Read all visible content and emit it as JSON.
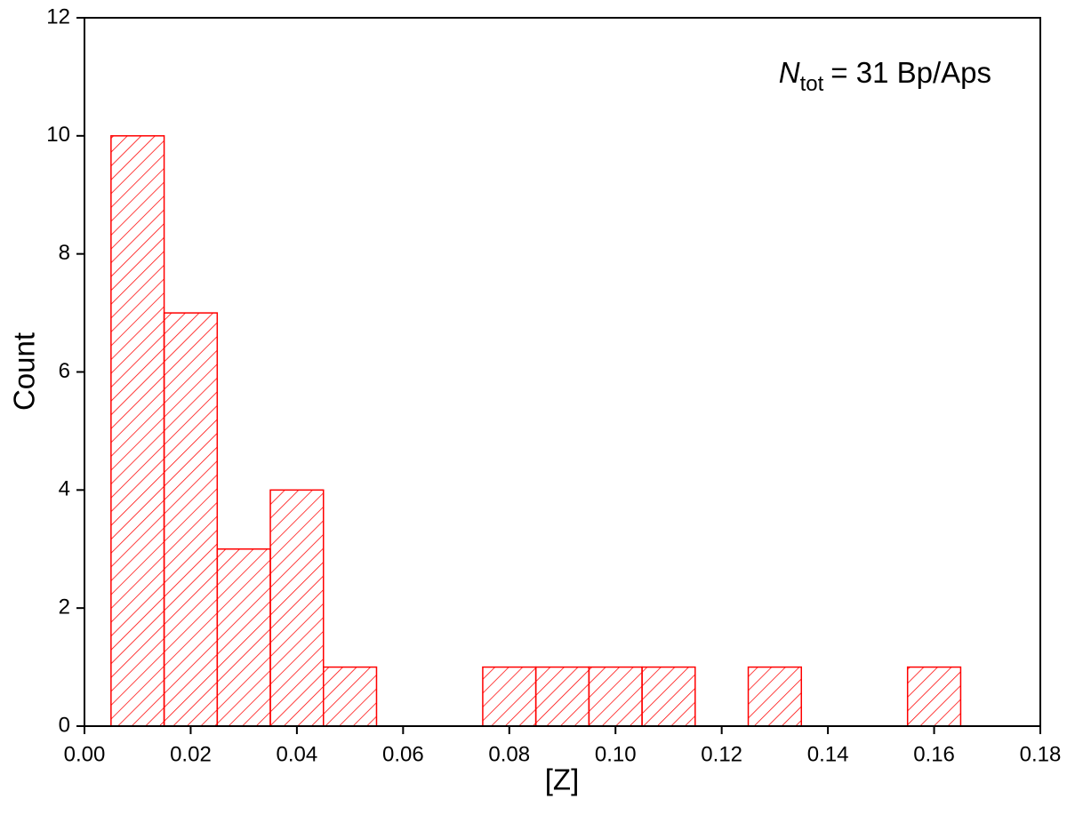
{
  "chart_data": {
    "type": "histogram",
    "x_label": "[Z]",
    "y_label": "Count",
    "annotation": {
      "symbol": "N",
      "subscript": "tot",
      "text": "= 31 Bp/Aps"
    },
    "bins": [
      0.005,
      0.015,
      0.025,
      0.035,
      0.045,
      0.055,
      0.065,
      0.075,
      0.085,
      0.095,
      0.105,
      0.115,
      0.125,
      0.135,
      0.145,
      0.155,
      0.165
    ],
    "values": [
      10,
      7,
      3,
      4,
      1,
      0,
      0,
      1,
      1,
      1,
      1,
      0,
      1,
      0,
      0,
      1
    ],
    "color": "#ff0000",
    "xlim": [
      0,
      0.18
    ],
    "xticks": [
      {
        "value": 0,
        "label": "0.00"
      },
      {
        "value": 0.02,
        "label": "0.02"
      },
      {
        "value": 0.04,
        "label": "0.04"
      },
      {
        "value": 0.06,
        "label": "0.06"
      },
      {
        "value": 0.08,
        "label": "0.08"
      },
      {
        "value": 0.1,
        "label": "0.10"
      },
      {
        "value": 0.12,
        "label": "0.12"
      },
      {
        "value": 0.14,
        "label": "0.14"
      },
      {
        "value": 0.16,
        "label": "0.16"
      },
      {
        "value": 0.18,
        "label": "0.18"
      }
    ],
    "ylim": [
      0,
      12
    ],
    "yticks": [
      0,
      2,
      4,
      6,
      8,
      10,
      12
    ],
    "grid": false
  }
}
